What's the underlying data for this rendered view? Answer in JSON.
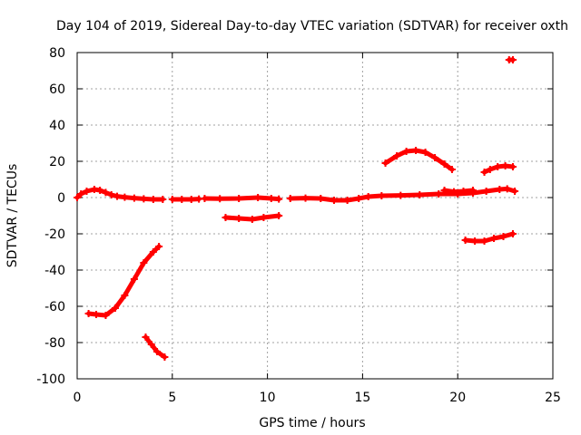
{
  "chart_data": {
    "type": "scatter",
    "title": "Day 104 of 2019, Sidereal Day-to-day VTEC variation (SDTVAR) for receiver oxth",
    "xlabel": "GPS time / hours",
    "ylabel": "SDTVAR / TECUs",
    "xlim": [
      0,
      25
    ],
    "ylim": [
      -100,
      80
    ],
    "xticks": [
      0,
      5,
      10,
      15,
      20,
      25
    ],
    "yticks": [
      -100,
      -80,
      -60,
      -40,
      -20,
      0,
      20,
      40,
      60,
      80
    ],
    "grid": true,
    "marker_color": "#ff0000",
    "segments": [
      {
        "points": [
          [
            0,
            0
          ],
          [
            0.2,
            2
          ],
          [
            0.5,
            3.5
          ],
          [
            0.9,
            4.5
          ],
          [
            1.2,
            4
          ],
          [
            1.5,
            2.8
          ],
          [
            1.8,
            1.5
          ],
          [
            2.1,
            0.7
          ],
          [
            2.5,
            0.2
          ],
          [
            3,
            -0.3
          ],
          [
            3.5,
            -0.7
          ],
          [
            4,
            -1
          ],
          [
            4.5,
            -1
          ]
        ]
      },
      {
        "points": [
          [
            5,
            -1
          ],
          [
            5.5,
            -1
          ],
          [
            6,
            -1
          ],
          [
            6.4,
            -0.8
          ]
        ]
      },
      {
        "points": [
          [
            6.7,
            -0.5
          ],
          [
            7.5,
            -0.6
          ],
          [
            8.5,
            -0.5
          ],
          [
            9.5,
            0
          ],
          [
            10.2,
            -0.5
          ],
          [
            10.6,
            -0.8
          ]
        ]
      },
      {
        "points": [
          [
            11.2,
            -0.5
          ],
          [
            12,
            -0.3
          ],
          [
            12.8,
            -0.5
          ],
          [
            13.5,
            -1.5
          ],
          [
            14.2,
            -1.5
          ],
          [
            14.8,
            -0.5
          ],
          [
            15.3,
            0.5
          ],
          [
            16,
            1
          ],
          [
            17,
            1.2
          ],
          [
            18,
            1.5
          ],
          [
            19,
            2
          ],
          [
            20,
            2
          ],
          [
            20.8,
            2.5
          ],
          [
            21.5,
            3.5
          ],
          [
            22.2,
            4.5
          ],
          [
            22.6,
            4.8
          ],
          [
            23,
            3.5
          ]
        ]
      },
      {
        "points": [
          [
            19.3,
            4
          ],
          [
            19.8,
            3.2
          ],
          [
            20.3,
            3.5
          ],
          [
            20.8,
            4
          ]
        ]
      },
      {
        "points": [
          [
            0.6,
            -64
          ],
          [
            1,
            -64.5
          ],
          [
            1.5,
            -65
          ],
          [
            2,
            -61
          ],
          [
            2.5,
            -54
          ],
          [
            3,
            -45
          ],
          [
            3.5,
            -36
          ],
          [
            4,
            -30
          ],
          [
            4.3,
            -27
          ]
        ]
      },
      {
        "points": [
          [
            3.6,
            -77
          ],
          [
            3.9,
            -81
          ],
          [
            4.2,
            -85
          ],
          [
            4.6,
            -88
          ]
        ]
      },
      {
        "points": [
          [
            7.8,
            -11
          ],
          [
            8.5,
            -11.5
          ],
          [
            9.2,
            -12
          ],
          [
            9.8,
            -11
          ],
          [
            10.6,
            -10
          ]
        ]
      },
      {
        "points": [
          [
            16.2,
            19
          ],
          [
            16.8,
            23
          ],
          [
            17.3,
            25.5
          ],
          [
            17.8,
            26
          ],
          [
            18.3,
            25
          ],
          [
            18.8,
            22
          ],
          [
            19.3,
            18.5
          ],
          [
            19.7,
            15.5
          ]
        ]
      },
      {
        "points": [
          [
            20.4,
            -23.5
          ],
          [
            20.9,
            -24
          ],
          [
            21.4,
            -24
          ],
          [
            21.9,
            -22.5
          ],
          [
            22.4,
            -21.5
          ],
          [
            22.9,
            -20
          ]
        ]
      },
      {
        "points": [
          [
            21.4,
            14
          ],
          [
            21.7,
            15.5
          ],
          [
            22.1,
            17
          ],
          [
            22.5,
            17.5
          ],
          [
            22.9,
            17
          ]
        ]
      },
      {
        "points": [
          [
            22.7,
            76
          ],
          [
            22.9,
            76
          ]
        ]
      }
    ]
  }
}
